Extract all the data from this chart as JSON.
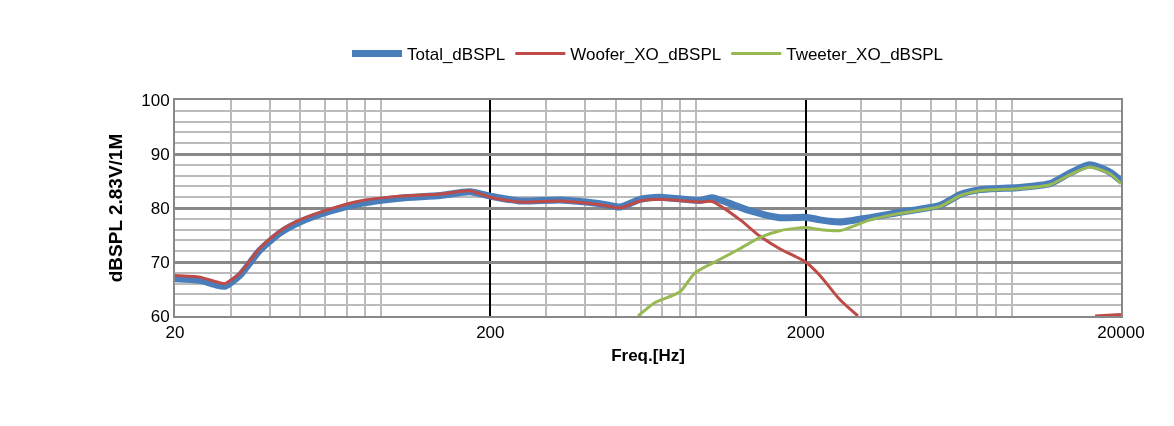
{
  "chart_data": {
    "type": "line",
    "xlabel": "Freq.[Hz]",
    "ylabel": "dBSPL 2.83V/1M",
    "log": "x",
    "xlim": [
      20,
      20000
    ],
    "xticks": [
      20,
      200,
      2000,
      20000
    ],
    "ylim": [
      60,
      100
    ],
    "yticks": [
      60,
      70,
      80,
      90,
      100
    ],
    "grid": true,
    "legend": "top",
    "marker": "none",
    "line_style": "solid",
    "series": [
      {
        "name": "Total_dBSPL",
        "color": "#4a7ebb",
        "x": [
          20,
          24,
          26.8,
          28.8,
          32.2,
          37.2,
          43.1,
          49.8,
          62,
          77.2,
          103,
          139,
          172,
          200,
          248,
          333,
          446,
          515,
          597,
          690,
          925,
          1010,
          1330,
          1660,
          2000,
          2220,
          2570,
          3200,
          3980,
          5340,
          6180,
          7150,
          9570,
          11900,
          13800,
          15900,
          18500,
          20000
        ],
        "values": [
          66.9,
          66.6,
          65.8,
          65.5,
          67.6,
          72.2,
          75.4,
          77.4,
          79.4,
          80.8,
          81.8,
          82.3,
          83.0,
          82.2,
          81.3,
          81.5,
          80.8,
          80.2,
          81.6,
          82.0,
          81.4,
          81.9,
          79.5,
          78.2,
          78.3,
          77.8,
          77.4,
          78.2,
          79.2,
          80.5,
          82.5,
          83.4,
          83.8,
          84.5,
          86.5,
          88.0,
          86.6,
          85.0
        ]
      },
      {
        "name": "Woofer_XO_dBSPL",
        "color": "#be4b48",
        "x": [
          20,
          24,
          26.8,
          28.8,
          32.2,
          37.2,
          43.1,
          49.8,
          62,
          77.2,
          103,
          139,
          172,
          200,
          248,
          333,
          446,
          515,
          597,
          690,
          925,
          1010,
          1240,
          1430,
          1660,
          2000,
          2220,
          2570,
          2930,
          8000,
          16550,
          20000
        ],
        "values": [
          67.5,
          67.2,
          66.4,
          66.0,
          68.0,
          72.6,
          75.8,
          77.8,
          79.8,
          81.3,
          82.2,
          82.6,
          83.2,
          82.0,
          81.1,
          81.3,
          80.6,
          80.0,
          81.3,
          81.6,
          81.1,
          81.2,
          77.8,
          74.8,
          72.4,
          70.0,
          67.5,
          63.0,
          60.0,
          null,
          60.0,
          60.3
        ]
      },
      {
        "name": "Tweeter_XO_dBSPL",
        "color": "#98b954",
        "x": [
          588,
          666,
          800,
          891,
          1070,
          1240,
          1430,
          1660,
          2000,
          2220,
          2570,
          3200,
          3980,
          5340,
          6180,
          7150,
          9570,
          11900,
          13800,
          15900,
          18500,
          20000
        ],
        "values": [
          60.0,
          62.5,
          64.5,
          68.0,
          70.5,
          72.5,
          74.5,
          75.8,
          76.4,
          76.0,
          75.8,
          77.8,
          79.0,
          80.3,
          82.3,
          83.2,
          83.6,
          84.3,
          86.2,
          87.6,
          86.3,
          84.5
        ]
      }
    ]
  }
}
